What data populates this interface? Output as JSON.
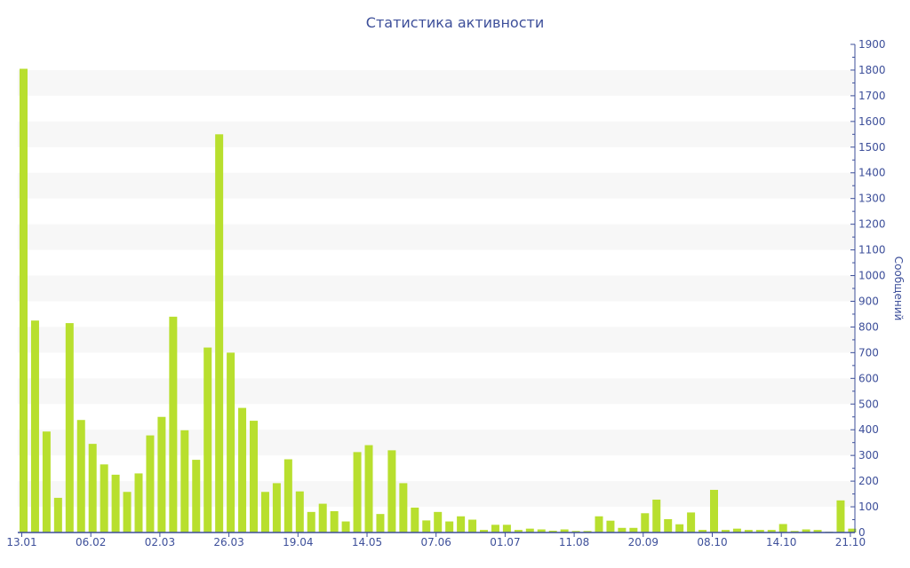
{
  "chart_data": {
    "type": "bar",
    "title": "Статистика активности",
    "ylabel": "Сообщений",
    "xlabel": "",
    "ylim": [
      0,
      1900
    ],
    "y_ticks": [
      0,
      100,
      200,
      300,
      400,
      500,
      600,
      700,
      800,
      900,
      1000,
      1100,
      1200,
      1300,
      1400,
      1500,
      1600,
      1700,
      1800,
      1900
    ],
    "y_axis_side": "right",
    "grid": "alternating horizontal bands",
    "x_tick_labels": [
      {
        "index": 0,
        "label": "13.01"
      },
      {
        "index": 6,
        "label": "06.02"
      },
      {
        "index": 12,
        "label": "02.03"
      },
      {
        "index": 18,
        "label": "26.03"
      },
      {
        "index": 24,
        "label": "19.04"
      },
      {
        "index": 30,
        "label": "14.05"
      },
      {
        "index": 36,
        "label": "07.06"
      },
      {
        "index": 42,
        "label": "01.07"
      },
      {
        "index": 48,
        "label": "11.08"
      },
      {
        "index": 54,
        "label": "20.09"
      },
      {
        "index": 60,
        "label": "08.10"
      },
      {
        "index": 66,
        "label": "14.10"
      },
      {
        "index": 72,
        "label": "21.10"
      }
    ],
    "values": [
      1805,
      825,
      393,
      135,
      815,
      438,
      345,
      265,
      225,
      158,
      230,
      378,
      450,
      840,
      398,
      283,
      720,
      1550,
      700,
      485,
      435,
      158,
      192,
      285,
      160,
      80,
      112,
      83,
      43,
      313,
      340,
      72,
      320,
      192,
      97,
      47,
      80,
      43,
      63,
      50,
      10,
      30,
      30,
      10,
      15,
      12,
      7,
      12,
      6,
      6,
      63,
      46,
      18,
      18,
      75,
      128,
      52,
      32,
      78,
      10,
      166,
      10,
      15,
      10,
      10,
      10,
      33,
      6,
      12,
      10,
      3,
      125,
      15
    ],
    "colors": {
      "bar": "#b8df2e",
      "axis": "#3d4f9a",
      "band": "#f7f7f7"
    }
  }
}
